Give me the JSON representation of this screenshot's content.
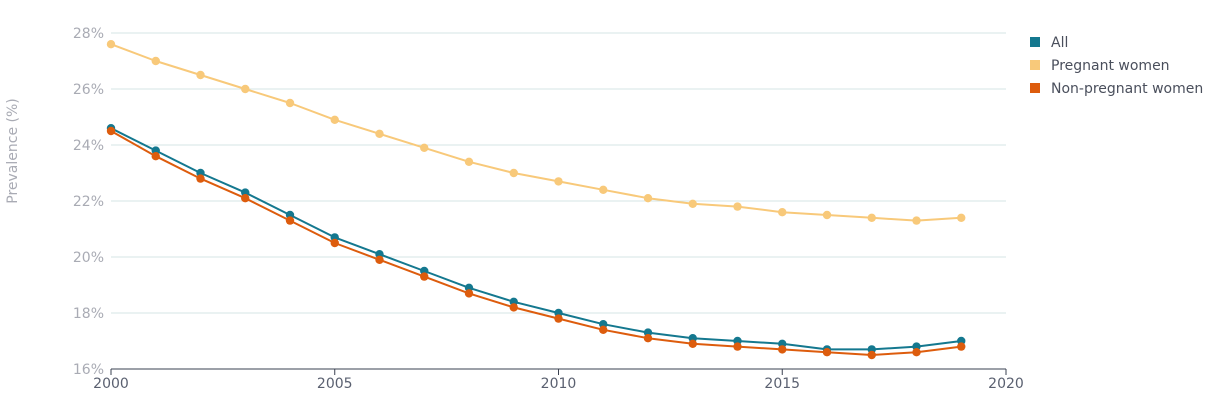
{
  "chart_data": {
    "type": "line",
    "title": "",
    "xlabel": "",
    "ylabel": "Prevalence (%)",
    "x": [
      2000,
      2001,
      2002,
      2003,
      2004,
      2005,
      2006,
      2007,
      2008,
      2009,
      2010,
      2011,
      2012,
      2013,
      2014,
      2015,
      2016,
      2017,
      2018,
      2019
    ],
    "xlim": [
      2000,
      2020
    ],
    "xticks": [
      2000,
      2005,
      2010,
      2015,
      2020
    ],
    "xtick_labels": [
      "2000",
      "2005",
      "2010",
      "2015",
      "2020"
    ],
    "ylim": [
      16,
      28
    ],
    "yticks": [
      16,
      18,
      20,
      22,
      24,
      26,
      28
    ],
    "ytick_labels": [
      "16%",
      "18%",
      "20%",
      "22%",
      "24%",
      "26%",
      "28%"
    ],
    "grid": true,
    "legend_position": "top-right",
    "series": [
      {
        "name": "All",
        "color": "#14788f",
        "values": [
          24.6,
          23.8,
          23.0,
          22.3,
          21.5,
          20.7,
          20.1,
          19.5,
          18.9,
          18.4,
          18.0,
          17.6,
          17.3,
          17.1,
          17.0,
          16.9,
          16.7,
          16.7,
          16.8,
          17.0
        ]
      },
      {
        "name": "Pregnant women",
        "color": "#f8c97a",
        "values": [
          27.6,
          27.0,
          26.5,
          26.0,
          25.5,
          24.9,
          24.4,
          23.9,
          23.4,
          23.0,
          22.7,
          22.4,
          22.1,
          21.9,
          21.8,
          21.6,
          21.5,
          21.4,
          21.3,
          21.4
        ]
      },
      {
        "name": "Non-pregnant women",
        "color": "#dd5c0d",
        "values": [
          24.5,
          23.6,
          22.8,
          22.1,
          21.3,
          20.5,
          19.9,
          19.3,
          18.7,
          18.2,
          17.8,
          17.4,
          17.1,
          16.9,
          16.8,
          16.7,
          16.6,
          16.5,
          16.6,
          16.8
        ]
      }
    ]
  }
}
